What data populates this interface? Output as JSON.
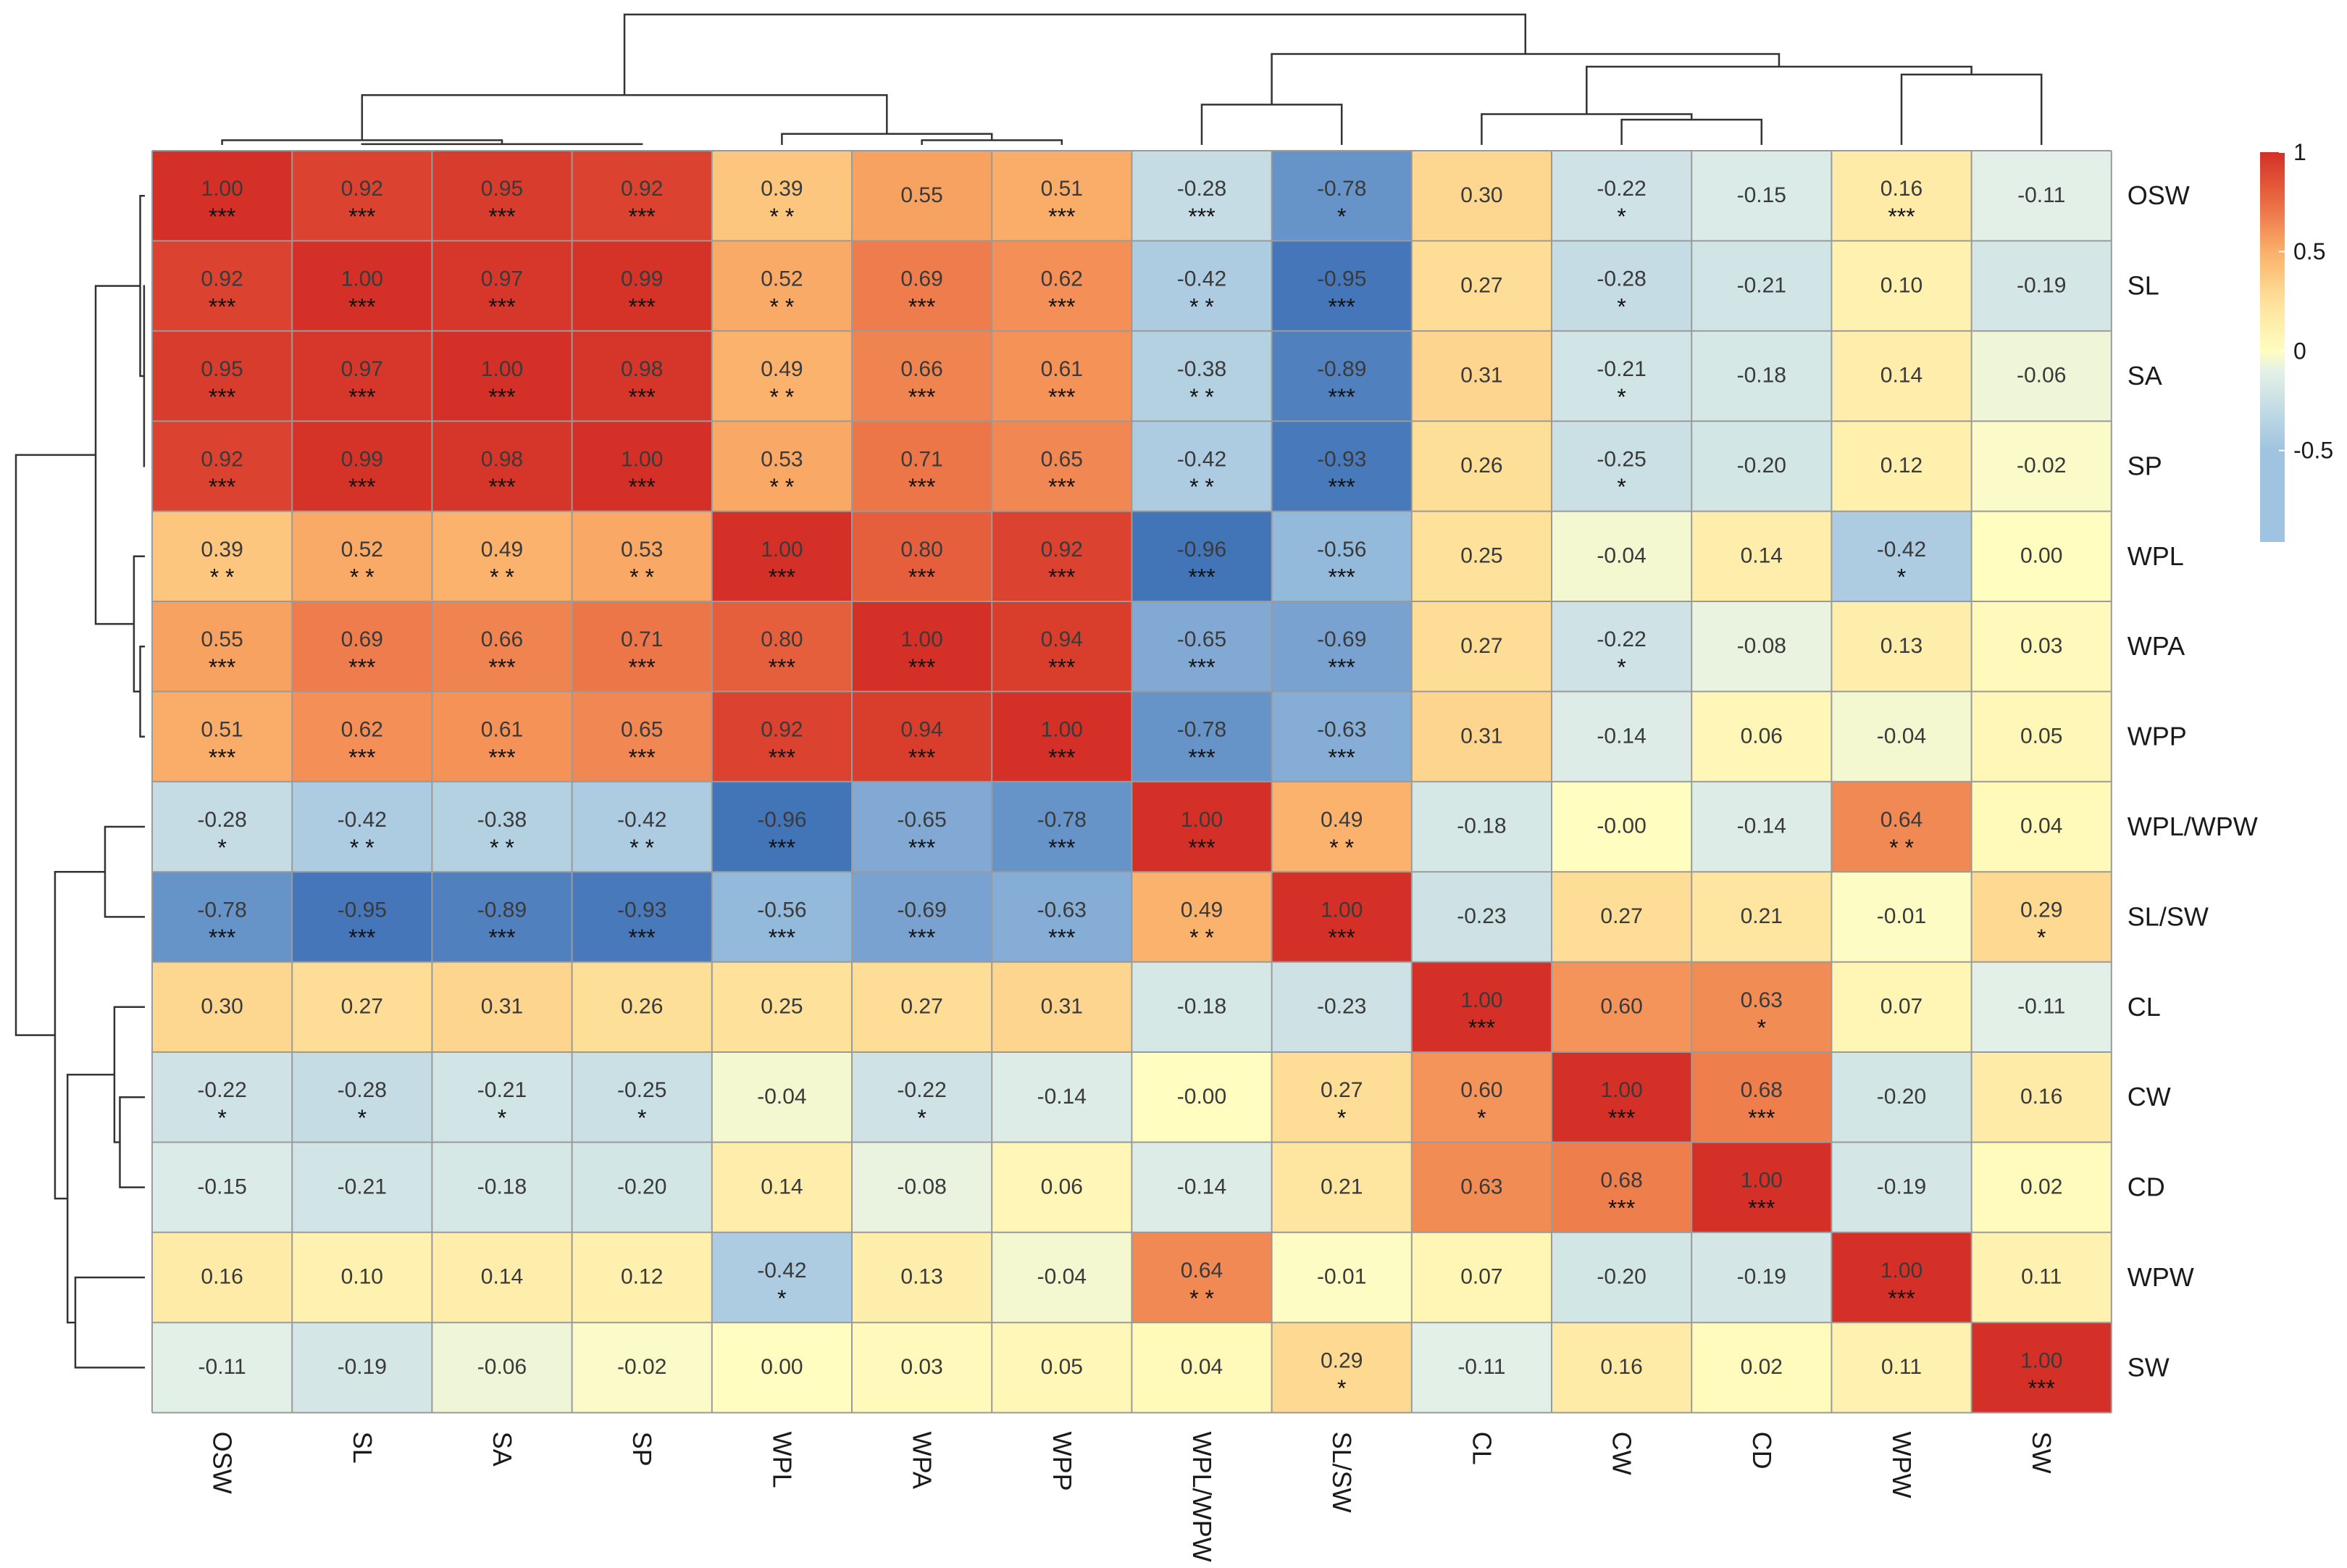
{
  "chart_data": {
    "type": "heatmap",
    "title": "",
    "variables": [
      "OSW",
      "SL",
      "SA",
      "SP",
      "WPL",
      "WPA",
      "WPP",
      "WPL/WPW",
      "SL/SW",
      "CL",
      "CW",
      "CD",
      "WPW",
      "SW"
    ],
    "row_labels": [
      "OSW",
      "SL",
      "SA",
      "SP",
      "WPL",
      "WPA",
      "WPP",
      "WPL/WPW",
      "SL/SW",
      "CL",
      "CW",
      "CD",
      "WPW",
      "SW"
    ],
    "col_labels": [
      "OSW",
      "SL",
      "SA",
      "SP",
      "WPL",
      "WPA",
      "WPP",
      "WPL/WPW",
      "SL/SW",
      "CL",
      "CW",
      "CD",
      "WPW",
      "SW"
    ],
    "values": [
      [
        "1.00",
        "0.92",
        "0.95",
        "0.92",
        "0.39",
        "0.55",
        "0.51",
        "-0.28",
        "-0.78",
        "0.30",
        "-0.22",
        "-0.15",
        "0.16",
        "-0.11"
      ],
      [
        "0.92",
        "1.00",
        "0.97",
        "0.99",
        "0.52",
        "0.69",
        "0.62",
        "-0.42",
        "-0.95",
        "0.27",
        "-0.28",
        "-0.21",
        "0.10",
        "-0.19"
      ],
      [
        "0.95",
        "0.97",
        "1.00",
        "0.98",
        "0.49",
        "0.66",
        "0.61",
        "-0.38",
        "-0.89",
        "0.31",
        "-0.21",
        "-0.18",
        "0.14",
        "-0.06"
      ],
      [
        "0.92",
        "0.99",
        "0.98",
        "1.00",
        "0.53",
        "0.71",
        "0.65",
        "-0.42",
        "-0.93",
        "0.26",
        "-0.25",
        "-0.20",
        "0.12",
        "-0.02"
      ],
      [
        "0.39",
        "0.52",
        "0.49",
        "0.53",
        "1.00",
        "0.80",
        "0.92",
        "-0.96",
        "-0.56",
        "0.25",
        "-0.04",
        "0.14",
        "-0.42",
        "0.00"
      ],
      [
        "0.55",
        "0.69",
        "0.66",
        "0.71",
        "0.80",
        "1.00",
        "0.94",
        "-0.65",
        "-0.69",
        "0.27",
        "-0.22",
        "-0.08",
        "0.13",
        "0.03"
      ],
      [
        "0.51",
        "0.62",
        "0.61",
        "0.65",
        "0.92",
        "0.94",
        "1.00",
        "-0.78",
        "-0.63",
        "0.31",
        "-0.14",
        "0.06",
        "-0.04",
        "0.05"
      ],
      [
        "-0.28",
        "-0.42",
        "-0.38",
        "-0.42",
        "-0.96",
        "-0.65",
        "-0.78",
        "1.00",
        "0.49",
        "-0.18",
        "-0.00",
        "-0.14",
        "0.64",
        "0.04"
      ],
      [
        "-0.78",
        "-0.95",
        "-0.89",
        "-0.93",
        "-0.56",
        "-0.69",
        "-0.63",
        "0.49",
        "1.00",
        "-0.23",
        "0.27",
        "0.21",
        "-0.01",
        "0.29"
      ],
      [
        "0.30",
        "0.27",
        "0.31",
        "0.26",
        "0.25",
        "0.27",
        "0.31",
        "-0.18",
        "-0.23",
        "1.00",
        "0.60",
        "0.63",
        "0.07",
        "-0.11"
      ],
      [
        "-0.22",
        "-0.28",
        "-0.21",
        "-0.25",
        "-0.04",
        "-0.22",
        "-0.14",
        "-0.00",
        "0.27",
        "0.60",
        "1.00",
        "0.68",
        "-0.20",
        "0.16"
      ],
      [
        "-0.15",
        "-0.21",
        "-0.18",
        "-0.20",
        "0.14",
        "-0.08",
        "0.06",
        "-0.14",
        "0.21",
        "0.63",
        "0.68",
        "1.00",
        "-0.19",
        "0.02"
      ],
      [
        "0.16",
        "0.10",
        "0.14",
        "0.12",
        "-0.42",
        "0.13",
        "-0.04",
        "0.64",
        "-0.01",
        "0.07",
        "-0.20",
        "-0.19",
        "1.00",
        "0.11"
      ],
      [
        "-0.11",
        "-0.19",
        "-0.06",
        "-0.02",
        "0.00",
        "0.03",
        "0.05",
        "0.04",
        "0.29",
        "-0.11",
        "0.16",
        "0.02",
        "0.11",
        "1.00"
      ]
    ],
    "significance": [
      [
        "***",
        "***",
        "***",
        "***",
        "* *",
        "",
        "***",
        "***",
        "*",
        "",
        "*",
        "",
        "***",
        ""
      ],
      [
        "***",
        "***",
        "***",
        "***",
        "* *",
        "***",
        "***",
        "* *",
        "***",
        "",
        "*",
        "",
        "",
        ""
      ],
      [
        "***",
        "***",
        "***",
        "***",
        "* *",
        "***",
        "***",
        "* *",
        "***",
        "",
        "*",
        "",
        "",
        ""
      ],
      [
        "***",
        "***",
        "***",
        "***",
        "* *",
        "***",
        "***",
        "* *",
        "***",
        "",
        "*",
        "",
        "",
        ""
      ],
      [
        "* *",
        "* *",
        "* *",
        "* *",
        "***",
        "***",
        "***",
        "***",
        "***",
        "",
        "",
        "",
        "*",
        ""
      ],
      [
        "***",
        "***",
        "***",
        "***",
        "***",
        "***",
        "***",
        "***",
        "***",
        "",
        "*",
        "",
        "",
        ""
      ],
      [
        "***",
        "***",
        "***",
        "***",
        "***",
        "***",
        "***",
        "***",
        "***",
        "",
        "",
        "",
        "",
        ""
      ],
      [
        "*",
        "* *",
        "* *",
        "* *",
        "***",
        "***",
        "***",
        "***",
        "* *",
        "",
        "",
        "",
        "* *",
        ""
      ],
      [
        "***",
        "***",
        "***",
        "***",
        "***",
        "***",
        "***",
        "* *",
        "***",
        "",
        "",
        "",
        "",
        "*"
      ],
      [
        "",
        "",
        "",
        "",
        "",
        "",
        "",
        "",
        "",
        "***",
        "",
        "*",
        "",
        ""
      ],
      [
        "*",
        "*",
        "*",
        "*",
        "",
        "*",
        "",
        "",
        "*",
        "*",
        "***",
        "***",
        "",
        ""
      ],
      [
        "",
        "",
        "",
        "",
        "",
        "",
        "",
        "",
        "",
        "",
        "***",
        "***",
        "",
        ""
      ],
      [
        "",
        "",
        "",
        "",
        "*",
        "",
        "",
        "* *",
        "",
        "",
        "",
        "",
        "***",
        ""
      ],
      [
        "",
        "",
        "",
        "",
        "",
        "",
        "",
        "",
        "*",
        "",
        "",
        "",
        "",
        "***"
      ]
    ],
    "color_scale": {
      "min": -1,
      "max": 1,
      "stops": [
        {
          "value": -1,
          "color": "#3a6db5"
        },
        {
          "value": -0.5,
          "color": "#9fc3e0"
        },
        {
          "value": -0.1,
          "color": "#e4f1e8"
        },
        {
          "value": 0,
          "color": "#fffdc0"
        },
        {
          "value": 0.25,
          "color": "#fee19a"
        },
        {
          "value": 0.5,
          "color": "#fbb06a"
        },
        {
          "value": 0.75,
          "color": "#ea6b42"
        },
        {
          "value": 1,
          "color": "#d43027"
        }
      ]
    },
    "legend": {
      "ticks": [
        {
          "value": 1,
          "label": "1"
        },
        {
          "value": 0.5,
          "label": "0.5"
        },
        {
          "value": 0,
          "label": "0"
        },
        {
          "value": -0.5,
          "label": "-0.5"
        }
      ],
      "min": -0.96,
      "max": 1,
      "placement": "top-right"
    },
    "dendrogram": {
      "leaves": [
        "OSW",
        "SL",
        "SA",
        "SP",
        "WPL",
        "WPA",
        "WPP",
        "WPL/WPW",
        "SL/SW",
        "CL",
        "CW",
        "CD",
        "WPW",
        "SW"
      ],
      "merges": [
        {
          "a": 1,
          "b": 3,
          "height": 0.01
        },
        {
          "a": 2,
          "b": 14,
          "height": 0.02
        },
        {
          "a": 0,
          "b": 15,
          "height": 0.06
        },
        {
          "a": 5,
          "b": 6,
          "height": 0.06
        },
        {
          "a": 4,
          "b": 17,
          "height": 0.14
        },
        {
          "a": 16,
          "b": 18,
          "height": 0.63
        },
        {
          "a": 7,
          "b": 8,
          "height": 0.51
        },
        {
          "a": 10,
          "b": 11,
          "height": 0.32
        },
        {
          "a": 9,
          "b": 21,
          "height": 0.39
        },
        {
          "a": 12,
          "b": 13,
          "height": 0.89
        },
        {
          "a": 22,
          "b": 23,
          "height": 0.99
        },
        {
          "a": 20,
          "b": 24,
          "height": 1.15
        },
        {
          "a": 19,
          "b": 25,
          "height": 1.65
        }
      ],
      "max_height": 1.65
    }
  }
}
